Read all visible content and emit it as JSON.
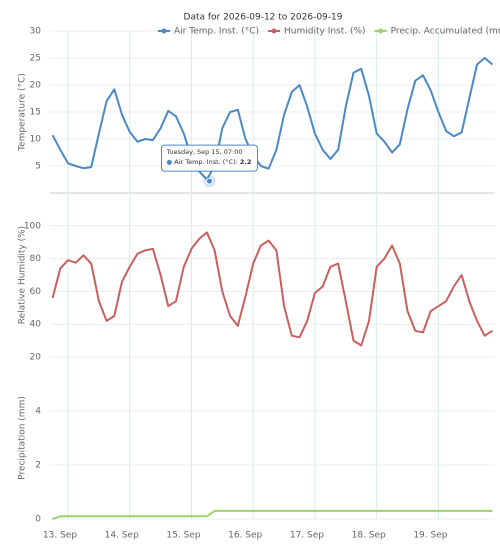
{
  "chart_data": {
    "type": "line",
    "title": "Data for 2026-09-12 to 2026-09-19",
    "xlim": [
      "2026-09-12T17:00",
      "2026-09-19T22:00"
    ],
    "xticks": [
      {
        "value": "2026-09-13T00:00",
        "label": "13. Sep"
      },
      {
        "value": "2026-09-14T00:00",
        "label": "14. Sep"
      },
      {
        "value": "2026-09-15T00:00",
        "label": "15. Sep"
      },
      {
        "value": "2026-09-16T00:00",
        "label": "16. Sep"
      },
      {
        "value": "2026-09-17T00:00",
        "label": "17. Sep"
      },
      {
        "value": "2026-09-18T00:00",
        "label": "18. Sep"
      },
      {
        "value": "2026-09-19T00:00",
        "label": "19. Sep"
      }
    ],
    "x": [
      "2026-09-12T18:00",
      "2026-09-12T21:00",
      "2026-09-13T00:00",
      "2026-09-13T03:00",
      "2026-09-13T06:00",
      "2026-09-13T09:00",
      "2026-09-13T12:00",
      "2026-09-13T15:00",
      "2026-09-13T18:00",
      "2026-09-13T21:00",
      "2026-09-14T00:00",
      "2026-09-14T03:00",
      "2026-09-14T06:00",
      "2026-09-14T09:00",
      "2026-09-14T12:00",
      "2026-09-14T15:00",
      "2026-09-14T18:00",
      "2026-09-14T21:00",
      "2026-09-15T00:00",
      "2026-09-15T03:00",
      "2026-09-15T06:00",
      "2026-09-15T09:00",
      "2026-09-15T12:00",
      "2026-09-15T15:00",
      "2026-09-15T18:00",
      "2026-09-15T21:00",
      "2026-09-16T00:00",
      "2026-09-16T03:00",
      "2026-09-16T06:00",
      "2026-09-16T09:00",
      "2026-09-16T12:00",
      "2026-09-16T15:00",
      "2026-09-16T18:00",
      "2026-09-16T21:00",
      "2026-09-17T00:00",
      "2026-09-17T03:00",
      "2026-09-17T06:00",
      "2026-09-17T09:00",
      "2026-09-17T12:00",
      "2026-09-17T15:00",
      "2026-09-17T18:00",
      "2026-09-17T21:00",
      "2026-09-18T00:00",
      "2026-09-18T03:00",
      "2026-09-18T06:00",
      "2026-09-18T09:00",
      "2026-09-18T12:00",
      "2026-09-18T15:00",
      "2026-09-18T18:00",
      "2026-09-18T21:00",
      "2026-09-19T00:00",
      "2026-09-19T03:00",
      "2026-09-19T06:00",
      "2026-09-19T09:00",
      "2026-09-19T12:00",
      "2026-09-19T15:00",
      "2026-09-19T18:00",
      "2026-09-19T21:00"
    ],
    "panels": [
      {
        "ylabel": "Temperature (°C)",
        "ylim": [
          0,
          30
        ],
        "yticks": [
          5,
          10,
          15,
          20,
          25,
          30
        ],
        "series": [
          {
            "name": "Air Temp. Inst. (°C)",
            "color": "#4b89c6",
            "values": [
              10.7,
              8.0,
              5.5,
              5.0,
              4.6,
              4.8,
              11.0,
              17.0,
              19.2,
              14.5,
              11.3,
              9.5,
              10.0,
              9.8,
              12.0,
              15.2,
              14.2,
              11.0,
              6.5,
              4.0,
              2.5,
              5.0,
              12.0,
              15.0,
              15.4,
              10.0,
              7.0,
              5.0,
              4.5,
              8.0,
              14.5,
              18.7,
              20.0,
              16.0,
              11.0,
              8.0,
              6.3,
              8.0,
              16.0,
              22.3,
              23.0,
              18.0,
              11.0,
              9.5,
              7.5,
              9.0,
              15.5,
              20.8,
              21.8,
              19.0,
              15.0,
              11.5,
              10.5,
              11.2,
              17.5,
              23.8,
              25.0,
              23.8
            ]
          }
        ]
      },
      {
        "ylabel": "Relative Humidity (%)",
        "ylim": [
          20,
          120
        ],
        "yticks": [
          20,
          40,
          60,
          80,
          100
        ],
        "series": [
          {
            "name": "Humidity Inst. (%)",
            "color": "#c8605e",
            "values": [
              56,
              74,
              79,
              77.5,
              82,
              77,
              54,
              42,
              45,
              66,
              75,
              83,
              85,
              86,
              70,
              51,
              54,
              75,
              86,
              92,
              96,
              85,
              60,
              45,
              39,
              57,
              77,
              88,
              91,
              85,
              51,
              33,
              32,
              42,
              59,
              63,
              75,
              77,
              54,
              30,
              27,
              42,
              75,
              80,
              88,
              77,
              48,
              36,
              35,
              48,
              51,
              54,
              63,
              70,
              54,
              42,
              33,
              36
            ]
          }
        ]
      },
      {
        "ylabel": "Precipitation (mm)",
        "ylim": [
          0,
          6
        ],
        "yticks": [
          0,
          2,
          4
        ],
        "series": [
          {
            "name": "Precip. Accumulated (mm)",
            "color": "#9ed26a",
            "values": [
              0,
              0.1,
              0.1,
              0.1,
              0.1,
              0.1,
              0.1,
              0.1,
              0.1,
              0.1,
              0.1,
              0.1,
              0.1,
              0.1,
              0.1,
              0.1,
              0.1,
              0.1,
              0.1,
              0.1,
              0.1,
              0.3,
              0.3,
              0.3,
              0.3,
              0.3,
              0.3,
              0.3,
              0.3,
              0.3,
              0.3,
              0.3,
              0.3,
              0.3,
              0.3,
              0.3,
              0.3,
              0.3,
              0.3,
              0.3,
              0.3,
              0.3,
              0.3,
              0.3,
              0.3,
              0.3,
              0.3,
              0.3,
              0.3,
              0.3,
              0.3,
              0.3,
              0.3,
              0.3,
              0.3,
              0.3,
              0.3,
              0.3
            ]
          }
        ]
      }
    ],
    "tooltip": {
      "x": "2026-09-15T07:00",
      "header": "Tuesday, Sep 15, 07:00",
      "value": 2.2
    }
  }
}
